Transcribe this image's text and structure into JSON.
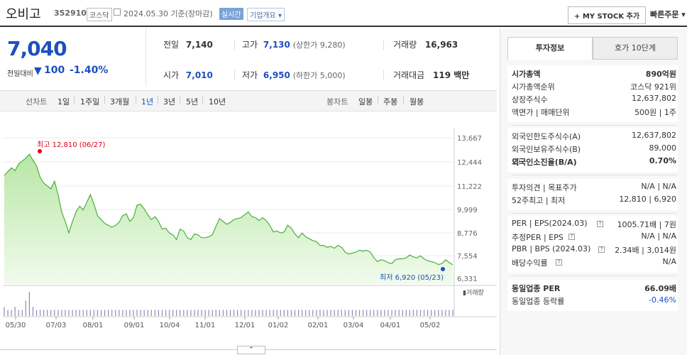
{
  "header": {
    "stock_name": "오비고",
    "stock_code": "352910",
    "market": "코스닥",
    "date": "2024.05.30  기준(장마감)",
    "realtime": "실시간",
    "company_overview": "기업개요 ▾",
    "mystock_button": "+ MY STOCK 추가",
    "quick_order": "빠른주문 ▾"
  },
  "price": {
    "current": "7,040",
    "change_label": "전일대비",
    "change_arrow": "▼",
    "change_value": "100",
    "change_pct": "-1.40%"
  },
  "quote": {
    "prev_label": "전일",
    "prev_value": "7,140",
    "high_label": "고가",
    "high_value": "7,130",
    "upper_limit": "(상한가 9,280)",
    "volume_label": "거래량",
    "volume_value": "16,963",
    "open_label": "시가",
    "open_value": "7,010",
    "low_label": "저가",
    "low_value": "6,950",
    "lower_limit": "(하한가 5,000)",
    "amount_label": "거래대금",
    "amount_value": "119 백만"
  },
  "period_bar": {
    "line_label": "선차트",
    "periods": [
      "1일",
      "1주일",
      "3개월",
      "1년",
      "3년",
      "5년",
      "10년"
    ],
    "selected": "1년",
    "candle_label": "봉차트",
    "candles": [
      "일봉",
      "주봉",
      "월봉"
    ]
  },
  "chart_data": {
    "type": "area",
    "x_labels": [
      "05/30",
      "07/03",
      "08/01",
      "09/01",
      "10/04",
      "11/01",
      "12/01",
      "01/02",
      "02/01",
      "03/04",
      "04/01",
      "05/02"
    ],
    "y_ticks": [
      "13,667",
      "12,444",
      "11,222",
      "9,999",
      "8,776",
      "7,554",
      "6,331"
    ],
    "ylim": [
      6331,
      13667
    ],
    "high_annotation": "최고 12,810 (06/27)",
    "low_annotation": "최저 6,920 (05/23)",
    "volume_legend": "▮거래량",
    "close": [
      11700,
      11900,
      12100,
      11950,
      12300,
      12450,
      12600,
      12810,
      12500,
      12200,
      11600,
      11300,
      11150,
      11000,
      11400,
      10700,
      9800,
      9300,
      8700,
      9300,
      9800,
      10100,
      9900,
      10300,
      10700,
      10200,
      9600,
      9400,
      9200,
      9100,
      9000,
      9100,
      9250,
      9600,
      9700,
      9300,
      9500,
      10150,
      10200,
      9950,
      9650,
      9400,
      9550,
      9300,
      8900,
      8950,
      8700,
      8600,
      8350,
      8900,
      8800,
      8450,
      8350,
      8650,
      8600,
      8450,
      8450,
      8500,
      8600,
      9050,
      9450,
      9300,
      9150,
      9250,
      9400,
      9450,
      9500,
      9650,
      9800,
      9550,
      9500,
      9350,
      9500,
      9350,
      9100,
      8750,
      8800,
      8700,
      8750,
      9100,
      8950,
      8650,
      8450,
      8700,
      8500,
      8400,
      8300,
      8250,
      8050,
      8050,
      7950,
      8000,
      7900,
      8050,
      7950,
      7700,
      7600,
      7650,
      7700,
      7800,
      7750,
      7800,
      7700,
      7400,
      7200,
      7300,
      7250,
      7150,
      7100,
      7300,
      7350,
      7350,
      7400,
      7550,
      7450,
      7400,
      7500,
      7350,
      7250,
      7200,
      7150,
      7050,
      7100,
      7300,
      7150,
      7040
    ],
    "volume": [
      3,
      2,
      2,
      3,
      2,
      2,
      5,
      8,
      3,
      2,
      2,
      2,
      2,
      2,
      2,
      2,
      2,
      2,
      2,
      2,
      2,
      2,
      2,
      2,
      2,
      2,
      2,
      2,
      2,
      2,
      2,
      2,
      2,
      2,
      2,
      2,
      2,
      2,
      2,
      2,
      2,
      2,
      2,
      2,
      2,
      2,
      2,
      2,
      2,
      2,
      2,
      2,
      2,
      2,
      2,
      2,
      2,
      2,
      2,
      2,
      2,
      2,
      2,
      2,
      2,
      2,
      2,
      2,
      2,
      2,
      2,
      2,
      2,
      2,
      2,
      2,
      2,
      2,
      2,
      2,
      2,
      2,
      2,
      2,
      2,
      2,
      2,
      2,
      2,
      2,
      2,
      2,
      2,
      2,
      2,
      2,
      2,
      2,
      2,
      2,
      2,
      2,
      2,
      2,
      2,
      2,
      2,
      2,
      2,
      2,
      2,
      2,
      2,
      2,
      2,
      2,
      2,
      2,
      2,
      2,
      2,
      2,
      2,
      2,
      2,
      2
    ],
    "colors": {
      "line": "#4caf3a",
      "fill_top": "#b8e6a6",
      "fill_bottom": "#f1fbec",
      "high": "#e0001b",
      "low": "#1e4fbf",
      "volume": "#8a8ab8"
    }
  },
  "sidebar": {
    "tab_invest": "투자정보",
    "tab_hoga": "호가 10단계",
    "rows1": [
      {
        "k": "시가총액",
        "v": "890억원",
        "bold": true
      },
      {
        "k": "시가총액순위",
        "v": "코스닥  921위"
      },
      {
        "k": "상장주식수",
        "v": "12,637,802"
      },
      {
        "k": "액면가 | 매매단위",
        "v": "500원 | 1주"
      }
    ],
    "rows2": [
      {
        "k": "외국인한도주식수(A)",
        "v": "12,637,802"
      },
      {
        "k": "외국인보유주식수(B)",
        "v": "89,000"
      },
      {
        "k": "외국인소진율(B/A)",
        "v": "0.70%",
        "bold": true
      }
    ],
    "rows3": [
      {
        "k": "투자의견 | 목표주가",
        "v": "N/A | N/A"
      },
      {
        "k": "52주최고 | 최저",
        "v": "12,810 | 6,920"
      }
    ],
    "rows4": [
      {
        "k": "PER | EPS(2024.03)",
        "v": "1005.71배 | 7원"
      },
      {
        "k": "추정PER | EPS",
        "v": "N/A | N/A"
      },
      {
        "k": "PBR | BPS (2024.03)",
        "v": "2.34배 | 3,014원"
      },
      {
        "k": "배당수익률",
        "v": "N/A"
      }
    ],
    "rows5": [
      {
        "k": "동일업종 PER",
        "v": "66.09배",
        "bold": true
      },
      {
        "k": "동일업종 등락률",
        "v": "-0.46%",
        "blue": true
      }
    ]
  },
  "toggle": "⌃"
}
